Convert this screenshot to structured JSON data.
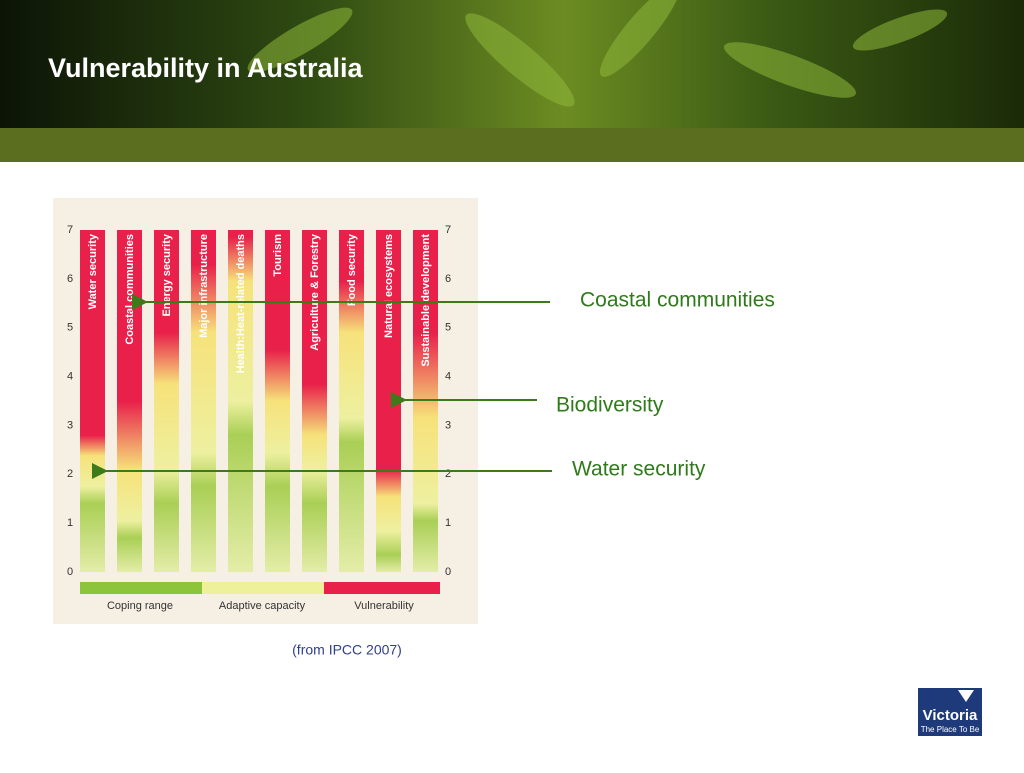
{
  "header": {
    "title": "Vulnerability in Australia"
  },
  "figure": {
    "bar_labels": [
      "Water security",
      "Coastal communities",
      "Energy security",
      "Major infrastructure",
      "Health:Heat-related deaths",
      "Tourism",
      "Agriculture & Forestry",
      "Food security",
      "Natural ecosystems",
      "Sustainable development"
    ],
    "axis_labels": [
      "0",
      "1",
      "2",
      "3",
      "4",
      "5",
      "6",
      "7"
    ],
    "legend": [
      "Coping range",
      "Adaptive capacity",
      "Vulnerability"
    ]
  },
  "annotations": [
    "Coastal communities",
    "Biodiversity",
    "Water security"
  ],
  "source": "(from IPCC 2007)",
  "logo": {
    "name": "Victoria",
    "tagline": "The Place To Be"
  }
}
